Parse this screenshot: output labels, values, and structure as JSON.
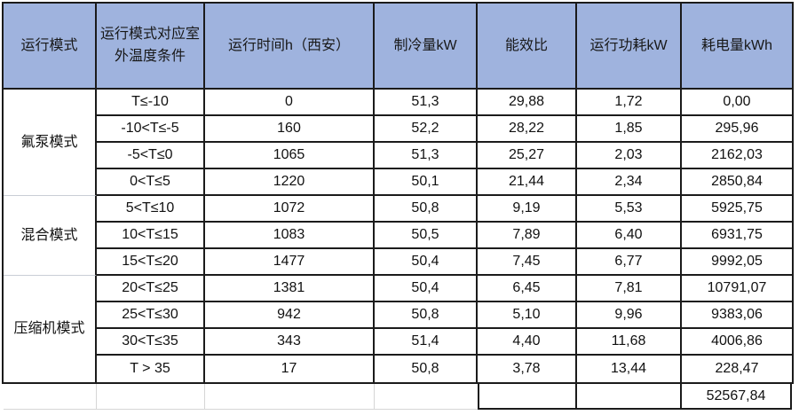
{
  "table": {
    "columns": [
      "运行模式",
      "运行模式对应室外温度条件",
      "运行时间h（西安）",
      "制冷量kW",
      "能效比",
      "运行功耗kW",
      "耗电量kWh"
    ],
    "groups": [
      {
        "mode": "氟泵模式",
        "rows": [
          {
            "temp": "T≤-10",
            "hours": "0",
            "cooling": "51,3",
            "eer": "29,88",
            "power": "1,72",
            "energy": "0,00"
          },
          {
            "temp": "-10<T≤-5",
            "hours": "160",
            "cooling": "52,2",
            "eer": "28,22",
            "power": "1,85",
            "energy": "295,96"
          },
          {
            "temp": "-5<T≤0",
            "hours": "1065",
            "cooling": "51,3",
            "eer": "25,27",
            "power": "2,03",
            "energy": "2162,03"
          },
          {
            "temp": "0<T≤5",
            "hours": "1220",
            "cooling": "50,1",
            "eer": "21,44",
            "power": "2,34",
            "energy": "2850,84"
          }
        ]
      },
      {
        "mode": "混合模式",
        "rows": [
          {
            "temp": "5<T≤10",
            "hours": "1072",
            "cooling": "50,8",
            "eer": "9,19",
            "power": "5,53",
            "energy": "5925,75"
          },
          {
            "temp": "10<T≤15",
            "hours": "1083",
            "cooling": "50,5",
            "eer": "7,89",
            "power": "6,40",
            "energy": "6931,75"
          },
          {
            "temp": "15<T≤20",
            "hours": "1477",
            "cooling": "50,4",
            "eer": "7,45",
            "power": "6,77",
            "energy": "9992,05"
          }
        ]
      },
      {
        "mode": "压缩机模式",
        "rows": [
          {
            "temp": "20<T≤25",
            "hours": "1381",
            "cooling": "50,4",
            "eer": "6,45",
            "power": "7,81",
            "energy": "10791,07"
          },
          {
            "temp": "25<T≤30",
            "hours": "942",
            "cooling": "50,8",
            "eer": "5,10",
            "power": "9,96",
            "energy": "9383,06"
          },
          {
            "temp": "30<T≤35",
            "hours": "343",
            "cooling": "51,4",
            "eer": "4,40",
            "power": "11,68",
            "energy": "4006,86"
          },
          {
            "temp": "T > 35",
            "hours": "17",
            "cooling": "50,8",
            "eer": "3,78",
            "power": "13,44",
            "energy": "228,47"
          }
        ]
      }
    ],
    "total_energy": "52567,84"
  },
  "colors": {
    "header_bg": "#9FB3DE",
    "border": "#1b1b1b",
    "gridline": "#d6d6d6",
    "text": "#111111"
  },
  "chart_data": {
    "type": "table",
    "columns": [
      "运行模式",
      "运行模式对应室外温度条件",
      "运行时间h（西安）",
      "制冷量kW",
      "能效比",
      "运行功耗kW",
      "耗电量kWh"
    ],
    "rows": [
      [
        "氟泵模式",
        "T≤-10",
        0,
        51.3,
        29.88,
        1.72,
        0.0
      ],
      [
        "氟泵模式",
        "-10<T≤-5",
        160,
        52.2,
        28.22,
        1.85,
        295.96
      ],
      [
        "氟泵模式",
        "-5<T≤0",
        1065,
        51.3,
        25.27,
        2.03,
        2162.03
      ],
      [
        "氟泵模式",
        "0<T≤5",
        1220,
        50.1,
        21.44,
        2.34,
        2850.84
      ],
      [
        "混合模式",
        "5<T≤10",
        1072,
        50.8,
        9.19,
        5.53,
        5925.75
      ],
      [
        "混合模式",
        "10<T≤15",
        1083,
        50.5,
        7.89,
        6.4,
        6931.75
      ],
      [
        "混合模式",
        "15<T≤20",
        1477,
        50.4,
        7.45,
        6.77,
        9992.05
      ],
      [
        "压缩机模式",
        "20<T≤25",
        1381,
        50.4,
        6.45,
        7.81,
        10791.07
      ],
      [
        "压缩机模式",
        "25<T≤30",
        942,
        50.8,
        5.1,
        9.96,
        9383.06
      ],
      [
        "压缩机模式",
        "30<T≤35",
        343,
        51.4,
        4.4,
        11.68,
        4006.86
      ],
      [
        "压缩机模式",
        "T > 35",
        17,
        50.8,
        3.78,
        13.44,
        228.47
      ]
    ],
    "total_energy_kwh": 52567.84
  }
}
